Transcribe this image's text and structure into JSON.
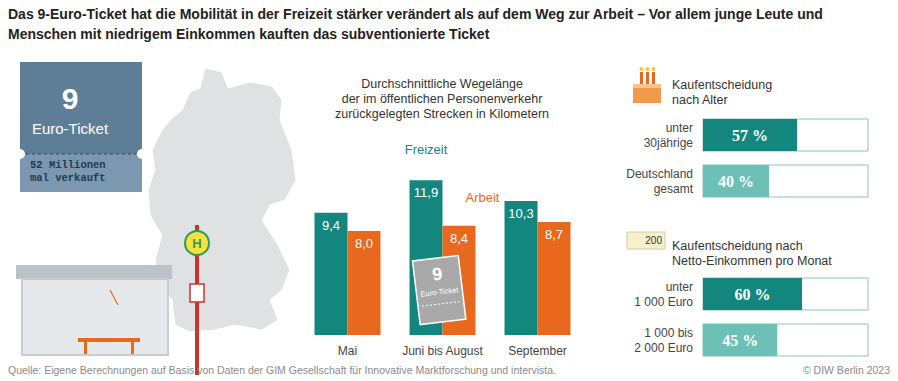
{
  "title": "Das 9-Euro-Ticket hat die Mobilität in der Freizeit stärker verändert als auf dem Weg zur Arbeit – Vor allem junge Leute und Menschen mit niedrigem Einkommen kauften das subventionierte Ticket",
  "ticket": {
    "number": "9",
    "label": "Euro-Ticket",
    "sold": "52 Millionen\nmal verkauft"
  },
  "bus_stop_sign": "H",
  "income_icon_label": "200",
  "source": "Quelle: Eigene Berechnungen auf Basis von Daten der GIM Gesellschaft für Innovative Marktforschung und intervista.",
  "copyright": "© DIW Berlin 2023",
  "chart_data": [
    {
      "type": "bar",
      "title": "Durchschnittliche Wegelänge\nder im öffentlichen Personenverkehr\nzurückgelegten Strecken in Kilometern",
      "categories": [
        "Mai",
        "Juni bis August",
        "September"
      ],
      "series": [
        {
          "name": "Freizeit",
          "color": "#13877d",
          "values": [
            9.4,
            11.9,
            10.3
          ],
          "value_labels": [
            "9,4",
            "11,9",
            "10,3"
          ]
        },
        {
          "name": "Arbeit",
          "color": "#e8681e",
          "values": [
            8.0,
            8.4,
            8.7
          ],
          "value_labels": [
            "8,0",
            "8,4",
            "8,7"
          ]
        }
      ],
      "ylim": [
        0,
        12
      ],
      "grid": false,
      "data_labels": true,
      "tick_labels": "x"
    },
    {
      "type": "bar",
      "orientation": "horizontal",
      "title": "Kaufentscheidung\nnach Alter",
      "categories": [
        "unter\n30jährige",
        "Deutschland\ngesamt"
      ],
      "values": [
        57,
        40
      ],
      "value_labels": [
        "57 %",
        "40 %"
      ],
      "colors": [
        "#13877d",
        "#6cc0b5"
      ],
      "xlim": [
        0,
        100
      ],
      "grid": false,
      "data_labels": true,
      "tick_labels": "y"
    },
    {
      "type": "bar",
      "orientation": "horizontal",
      "title": "Kaufentscheidung nach\nNetto-Einkommen pro Monat",
      "categories": [
        "unter\n1 000 Euro",
        "1 000 bis\n2 000 Euro"
      ],
      "values": [
        60,
        45
      ],
      "value_labels": [
        "60 %",
        "45 %"
      ],
      "colors": [
        "#13877d",
        "#6cc0b5"
      ],
      "xlim": [
        0,
        100
      ],
      "grid": false,
      "data_labels": true,
      "tick_labels": "y"
    }
  ]
}
